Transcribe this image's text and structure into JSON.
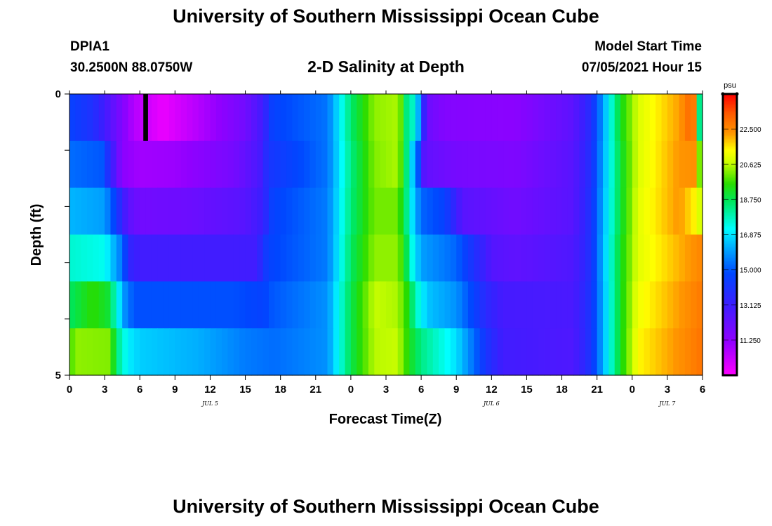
{
  "header": {
    "title_top": "University of Southern Mississippi Ocean Cube",
    "title_bottom": "University of Southern Mississippi Ocean Cube",
    "station": "DPIA1",
    "coordinates": "30.2500N  88.0750W",
    "model_start_label": "Model Start Time",
    "model_start_value": "07/05/2021 Hour 15"
  },
  "chart_data": {
    "type": "heatmap",
    "title": "2-D Salinity at Depth",
    "xlabel": "Forecast Time(Z)",
    "ylabel": "Depth (ft)",
    "x_range_hours": [
      0,
      54
    ],
    "y_range": [
      0,
      5
    ],
    "x_ticks": [
      "0",
      "3",
      "6",
      "9",
      "12",
      "15",
      "18",
      "21",
      "0",
      "3",
      "6",
      "9",
      "12",
      "15",
      "18",
      "21",
      "0",
      "3",
      "6"
    ],
    "y_ticks": [
      "0",
      "5"
    ],
    "day_labels": [
      "JUL 5",
      "JUL 6",
      "JUL 7"
    ],
    "colorbar": {
      "unit": "psu",
      "min": 9.375,
      "max": 24.375,
      "ticks": [
        "22.500",
        "20.625",
        "18.750",
        "16.875",
        "15.000",
        "13.125",
        "11.250"
      ]
    },
    "salinity_layers": [
      {
        "depth": "0-1",
        "profile": [
          [
            0,
            14.6
          ],
          [
            2,
            13.9
          ],
          [
            3,
            13.0
          ],
          [
            4,
            12.0
          ],
          [
            5.5,
            10.6
          ],
          [
            8,
            9.7
          ],
          [
            11,
            10.6
          ],
          [
            15,
            11.9
          ],
          [
            16.5,
            13.0
          ],
          [
            17.3,
            14.6
          ],
          [
            22,
            15.4
          ],
          [
            24,
            18.5
          ],
          [
            26,
            20.3
          ],
          [
            28,
            20.5
          ],
          [
            28.5,
            19.5
          ],
          [
            29,
            17.2
          ],
          [
            29.5,
            18.3
          ],
          [
            30,
            14.2
          ],
          [
            30.6,
            12.0
          ],
          [
            32,
            11.5
          ],
          [
            38,
            11.3
          ],
          [
            43,
            12.4
          ],
          [
            44.5,
            13.8
          ],
          [
            45.5,
            16.0
          ],
          [
            47,
            19.2
          ],
          [
            48.5,
            20.9
          ],
          [
            52,
            22.2
          ],
          [
            53.2,
            23.3
          ],
          [
            53.6,
            19.0
          ],
          [
            54,
            17.0
          ]
        ]
      },
      {
        "depth": "1-2",
        "profile": [
          [
            0,
            15.3
          ],
          [
            2.8,
            15.0
          ],
          [
            3.4,
            13.6
          ],
          [
            4,
            12.3
          ],
          [
            4.5,
            11.3
          ],
          [
            6,
            10.9
          ],
          [
            9,
            11.0
          ],
          [
            14,
            11.8
          ],
          [
            16.2,
            12.8
          ],
          [
            17,
            14.1
          ],
          [
            22,
            15.4
          ],
          [
            24,
            18.3
          ],
          [
            26,
            20.2
          ],
          [
            28,
            20.5
          ],
          [
            28.5,
            19.3
          ],
          [
            29,
            17.4
          ],
          [
            29.7,
            15.2
          ],
          [
            30.3,
            12.3
          ],
          [
            33,
            11.8
          ],
          [
            38,
            11.6
          ],
          [
            43,
            12.5
          ],
          [
            44.5,
            13.9
          ],
          [
            45.5,
            16.1
          ],
          [
            47,
            19.0
          ],
          [
            48.5,
            20.9
          ],
          [
            52,
            22.3
          ],
          [
            53.6,
            22.4
          ],
          [
            54,
            16.4
          ]
        ]
      },
      {
        "depth": "2-3",
        "profile": [
          [
            0,
            16.3
          ],
          [
            2.8,
            16.0
          ],
          [
            3.5,
            15.3
          ],
          [
            4,
            14.3
          ],
          [
            5,
            12.4
          ],
          [
            6,
            11.9
          ],
          [
            10,
            12.0
          ],
          [
            15,
            12.5
          ],
          [
            16.5,
            13.2
          ],
          [
            17.3,
            14.6
          ],
          [
            22,
            15.5
          ],
          [
            24,
            18.4
          ],
          [
            26,
            20.1
          ],
          [
            28,
            20.1
          ],
          [
            28.6,
            18.7
          ],
          [
            29.3,
            16.7
          ],
          [
            30,
            15.2
          ],
          [
            32,
            14.6
          ],
          [
            33.5,
            12.5
          ],
          [
            38,
            11.9
          ],
          [
            43,
            12.5
          ],
          [
            44.5,
            14.0
          ],
          [
            45.5,
            16.2
          ],
          [
            47,
            19.0
          ],
          [
            48.5,
            21.0
          ],
          [
            52,
            22.3
          ],
          [
            53.7,
            21.2
          ],
          [
            54,
            19.3
          ]
        ]
      },
      {
        "depth": "3-4",
        "profile": [
          [
            0,
            17.6
          ],
          [
            3,
            17.3
          ],
          [
            4.6,
            15.2
          ],
          [
            5,
            13.5
          ],
          [
            6,
            13.0
          ],
          [
            16,
            13.0
          ],
          [
            16.6,
            14.2
          ],
          [
            17.3,
            14.7
          ],
          [
            22,
            15.5
          ],
          [
            24,
            18.6
          ],
          [
            26,
            20.3
          ],
          [
            28,
            20.3
          ],
          [
            28.6,
            19.2
          ],
          [
            29.3,
            17.2
          ],
          [
            30,
            16.0
          ],
          [
            33,
            15.2
          ],
          [
            35,
            13.5
          ],
          [
            36,
            12.6
          ],
          [
            38,
            12.3
          ],
          [
            43,
            12.7
          ],
          [
            44.5,
            14.0
          ],
          [
            45.5,
            16.3
          ],
          [
            47,
            19.2
          ],
          [
            48.5,
            21.0
          ],
          [
            54,
            22.6
          ]
        ]
      },
      {
        "depth": "4-5",
        "profile": [
          [
            0,
            18.6
          ],
          [
            2,
            19.6
          ],
          [
            3.4,
            19.0
          ],
          [
            4,
            17.5
          ],
          [
            4.7,
            15.8
          ],
          [
            5.5,
            14.9
          ],
          [
            14,
            14.9
          ],
          [
            16.5,
            14.6
          ],
          [
            17.3,
            15.0
          ],
          [
            22,
            15.8
          ],
          [
            24,
            18.8
          ],
          [
            26,
            20.7
          ],
          [
            28,
            20.5
          ],
          [
            28.8,
            19.5
          ],
          [
            29.6,
            17.7
          ],
          [
            30.5,
            16.5
          ],
          [
            33,
            15.8
          ],
          [
            34.5,
            14.6
          ],
          [
            35.5,
            13.6
          ],
          [
            37,
            12.9
          ],
          [
            43,
            12.8
          ],
          [
            44.5,
            14.1
          ],
          [
            45.5,
            16.2
          ],
          [
            47,
            19.2
          ],
          [
            48.5,
            21.2
          ],
          [
            54,
            22.8
          ]
        ]
      },
      {
        "depth": "5",
        "profile": [
          [
            0,
            19.6
          ],
          [
            0.5,
            20.3
          ],
          [
            3.5,
            20.2
          ],
          [
            4,
            18.4
          ],
          [
            5,
            17.0
          ],
          [
            6,
            16.6
          ],
          [
            11,
            16.2
          ],
          [
            15,
            15.5
          ],
          [
            17.5,
            15.3
          ],
          [
            22,
            15.8
          ],
          [
            24,
            18.8
          ],
          [
            26,
            20.6
          ],
          [
            28,
            20.7
          ],
          [
            29,
            19.3
          ],
          [
            30,
            18.3
          ],
          [
            33,
            16.8
          ],
          [
            34.5,
            15.3
          ],
          [
            35.5,
            14.1
          ],
          [
            37,
            13.0
          ],
          [
            43,
            12.7
          ],
          [
            44.5,
            14.1
          ],
          [
            45.5,
            16.2
          ],
          [
            47,
            19.2
          ],
          [
            48.5,
            21.4
          ],
          [
            54,
            22.9
          ]
        ]
      }
    ],
    "missing_data_segment": {
      "depth": "0-1",
      "x_hours": [
        6.3,
        6.7
      ]
    }
  }
}
